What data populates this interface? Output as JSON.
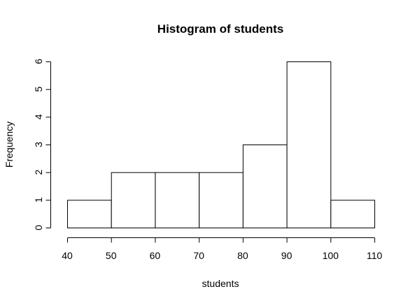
{
  "chart_data": {
    "type": "bar",
    "title": "Histogram of students",
    "xlabel": "students",
    "ylabel": "Frequency",
    "bins": [
      {
        "start": 40,
        "end": 50,
        "value": 1
      },
      {
        "start": 50,
        "end": 60,
        "value": 2
      },
      {
        "start": 60,
        "end": 70,
        "value": 2
      },
      {
        "start": 70,
        "end": 80,
        "value": 2
      },
      {
        "start": 80,
        "end": 90,
        "value": 3
      },
      {
        "start": 90,
        "end": 100,
        "value": 6
      },
      {
        "start": 100,
        "end": 110,
        "value": 1
      }
    ],
    "xlim": [
      40,
      110
    ],
    "ylim": [
      0,
      6
    ],
    "xticks": [
      "40",
      "50",
      "60",
      "70",
      "80",
      "90",
      "100",
      "110"
    ],
    "yticks": [
      "0",
      "1",
      "2",
      "3",
      "4",
      "5",
      "6"
    ],
    "grid": false,
    "legend": "none"
  }
}
